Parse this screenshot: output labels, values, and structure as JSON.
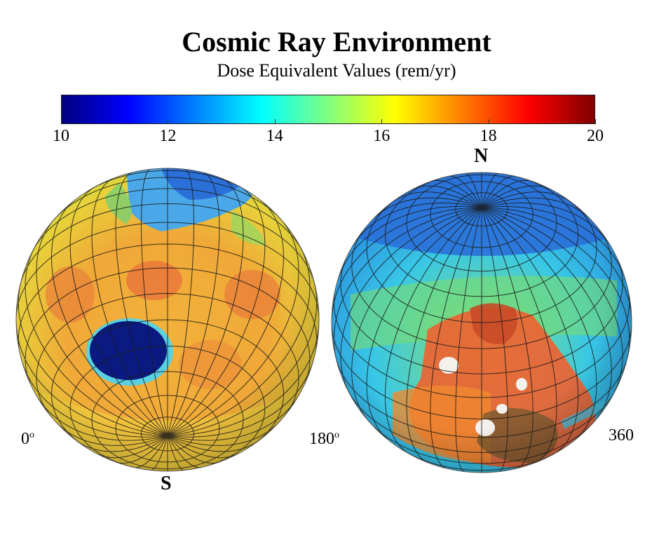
{
  "title": "Cosmic Ray Environment",
  "subtitle": "Dose Equivalent Values (rem/yr)",
  "colorbar": {
    "ticks": [
      "10",
      "12",
      "14",
      "16",
      "18",
      "20"
    ],
    "min": 10,
    "max": 20,
    "colors": [
      "#00007f",
      "#0000ff",
      "#0080ff",
      "#00ffff",
      "#80ff80",
      "#ffff00",
      "#ff8000",
      "#ff0000",
      "#7f0000"
    ]
  },
  "labels": {
    "north": "N",
    "south": "S",
    "lon_left": "0",
    "lon_middle": "180",
    "lon_right": "360",
    "degree_mark": "o"
  }
}
